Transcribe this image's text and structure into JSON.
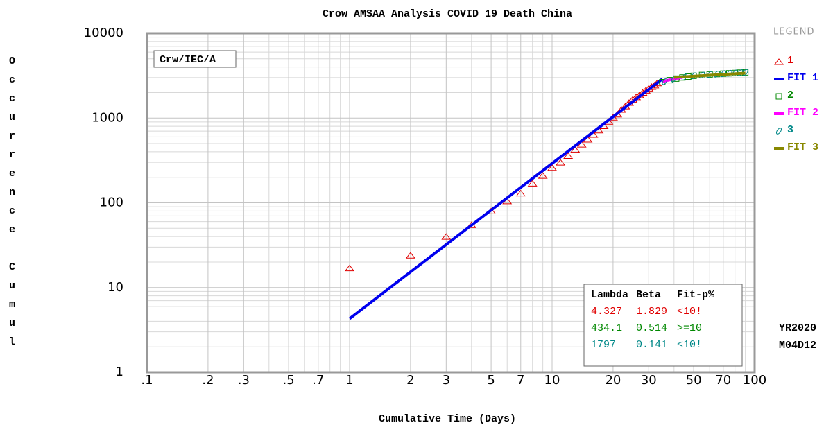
{
  "chart_data": {
    "type": "scatter",
    "title": "Crow AMSAA Analysis COVID 19 Death China",
    "x_label": "Cumulative Time (Days)",
    "y_label": "Occurrence Cumul",
    "log_x": true,
    "log_y": true,
    "grid": true,
    "xlim": [
      0.1,
      100
    ],
    "ylim": [
      1,
      10000
    ],
    "xticks": [
      {
        "value": 0.1,
        "label": ".1"
      },
      {
        "value": 0.2,
        "label": ".2"
      },
      {
        "value": 0.3,
        "label": ".3"
      },
      {
        "value": 0.5,
        "label": ".5"
      },
      {
        "value": 0.7,
        "label": ".7"
      },
      1,
      2,
      3,
      5,
      7,
      10,
      20,
      30,
      50,
      70,
      100
    ],
    "x_minor_ticks": [
      0.4,
      0.6,
      0.8,
      0.9,
      4,
      6,
      8,
      9,
      40,
      60,
      80,
      90
    ],
    "yticks": [
      1,
      10,
      100,
      1000,
      10000
    ],
    "y_minor_ticks": [
      2,
      3,
      4,
      5,
      6,
      7,
      8,
      9,
      20,
      30,
      40,
      50,
      60,
      70,
      80,
      90,
      200,
      300,
      400,
      500,
      600,
      700,
      800,
      900,
      2000,
      3000,
      4000,
      5000,
      6000,
      7000,
      8000,
      9000
    ],
    "method_label": "Crw/IEC/A",
    "legend_title": "LEGEND",
    "series": [
      {
        "name": "1",
        "color": "#e00000",
        "marker": "triangle",
        "x": [
          1,
          2,
          3,
          4,
          5,
          6,
          7,
          8,
          9,
          10,
          11,
          12,
          13,
          14,
          15,
          16,
          17,
          18,
          19,
          20,
          21,
          22,
          23,
          24,
          25,
          26,
          27,
          28,
          29,
          30,
          31,
          32,
          33
        ],
        "values": [
          17,
          24,
          40,
          55,
          80,
          105,
          130,
          170,
          210,
          260,
          300,
          360,
          425,
          490,
          560,
          640,
          720,
          810,
          910,
          1020,
          1110,
          1260,
          1380,
          1520,
          1660,
          1770,
          1870,
          2000,
          2120,
          2240,
          2345,
          2440,
          2590
        ]
      },
      {
        "name": "FIT 1",
        "color": "#0000ee",
        "marker": "line",
        "x": [
          1,
          35
        ],
        "values": [
          4.3,
          2886
        ]
      },
      {
        "name": "2",
        "color": "#008800",
        "marker": "square",
        "x": [
          35,
          38,
          41,
          44,
          47,
          50,
          55,
          60,
          65,
          70,
          75,
          80,
          85,
          90
        ],
        "values": [
          2650,
          2800,
          2920,
          3010,
          3080,
          3150,
          3220,
          3270,
          3310,
          3340,
          3370,
          3400,
          3430,
          3460
        ]
      },
      {
        "name": "FIT 2",
        "color": "#ff00ff",
        "marker": "line",
        "x": [
          35,
          45
        ],
        "values": [
          2700,
          3073
        ]
      },
      {
        "name": "3",
        "color": "#008888",
        "marker": "ellipse",
        "x": [
          36,
          40,
          45,
          50,
          55,
          60,
          65,
          70,
          75,
          80,
          85,
          90
        ],
        "values": [
          2700,
          2900,
          3050,
          3150,
          3210,
          3260,
          3300,
          3340,
          3370,
          3400,
          3430,
          3460
        ]
      },
      {
        "name": "FIT 3",
        "color": "#888800",
        "marker": "line",
        "x": [
          40,
          90
        ],
        "values": [
          3022,
          3389
        ]
      }
    ],
    "stats": {
      "headers": [
        "Lambda",
        "Beta",
        "Fit-p%"
      ],
      "rows": [
        [
          "4.327",
          "1.829",
          "<10!"
        ],
        [
          "434.1",
          "0.514",
          ">=10"
        ],
        [
          "1797",
          "0.141",
          "<10!"
        ]
      ],
      "row_colors": [
        "#e00000",
        "#008800",
        "#008888"
      ]
    },
    "date_labels": [
      "YR2020",
      "M04D12"
    ]
  }
}
